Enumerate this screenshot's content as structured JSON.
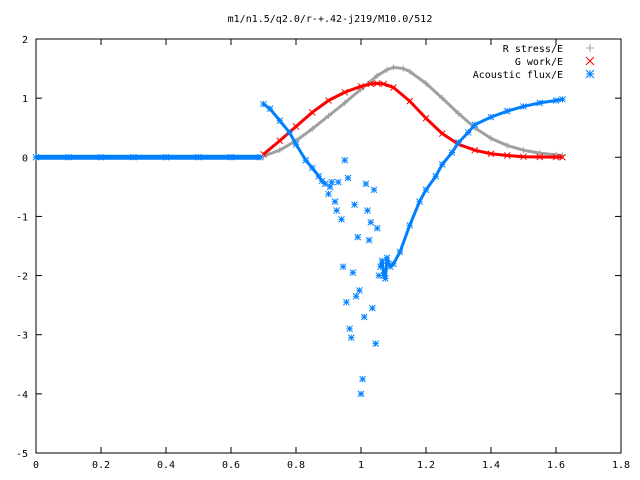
{
  "chart_data": {
    "type": "scatter",
    "title": "m1/n1.5/q2.0/r-+.42-j219/M10.0/512",
    "xlabel": "",
    "ylabel": "",
    "xlim": [
      0,
      1.8
    ],
    "ylim": [
      -5,
      2
    ],
    "x_ticks": [
      "0",
      "0.2",
      "0.4",
      "0.6",
      "0.8",
      "1",
      "1.2",
      "1.4",
      "1.6",
      "1.8"
    ],
    "y_ticks": [
      "2",
      "1",
      "0",
      "-1",
      "-2",
      "-3",
      "-4",
      "-5"
    ],
    "grid": false,
    "legend_position": "top-right",
    "series": [
      {
        "name": "R stress/E",
        "marker": "+",
        "color": "#a0a0a0",
        "x": [
          0.7,
          0.75,
          0.8,
          0.85,
          0.9,
          0.95,
          1.0,
          1.05,
          1.08,
          1.1,
          1.13,
          1.15,
          1.2,
          1.25,
          1.3,
          1.35,
          1.4,
          1.45,
          1.5,
          1.55,
          1.6,
          1.62
        ],
        "y": [
          0.02,
          0.12,
          0.28,
          0.48,
          0.7,
          0.92,
          1.15,
          1.38,
          1.48,
          1.52,
          1.5,
          1.45,
          1.25,
          1.0,
          0.74,
          0.5,
          0.32,
          0.2,
          0.12,
          0.07,
          0.04,
          0.03
        ]
      },
      {
        "name": "G work/E",
        "marker": "x",
        "color": "#ff0000",
        "x": [
          0.7,
          0.75,
          0.8,
          0.85,
          0.9,
          0.95,
          1.0,
          1.03,
          1.05,
          1.07,
          1.1,
          1.15,
          1.2,
          1.25,
          1.3,
          1.35,
          1.4,
          1.45,
          1.5,
          1.55,
          1.6,
          1.62
        ],
        "y": [
          0.05,
          0.28,
          0.52,
          0.76,
          0.96,
          1.1,
          1.2,
          1.24,
          1.25,
          1.24,
          1.18,
          0.95,
          0.66,
          0.4,
          0.22,
          0.12,
          0.06,
          0.03,
          0.01,
          0.005,
          0.002,
          0.0
        ]
      },
      {
        "name": "Acoustic flux/E",
        "marker": "*",
        "color": "#0080ff",
        "x": [
          0.0,
          0.1,
          0.2,
          0.3,
          0.4,
          0.5,
          0.6,
          0.69,
          0.7,
          0.72,
          0.75,
          0.78,
          0.8,
          0.83,
          0.85,
          0.87,
          0.88,
          0.89,
          0.9,
          0.905,
          0.91,
          0.92,
          0.925,
          0.93,
          0.94,
          0.945,
          0.95,
          0.955,
          0.96,
          0.965,
          0.97,
          0.975,
          0.98,
          0.985,
          0.99,
          0.995,
          1.0,
          1.005,
          1.01,
          1.015,
          1.02,
          1.025,
          1.03,
          1.035,
          1.04,
          1.045,
          1.05,
          1.055,
          1.06,
          1.065,
          1.07,
          1.075,
          1.08,
          1.09,
          1.1,
          1.12,
          1.15,
          1.18,
          1.2,
          1.23,
          1.25,
          1.28,
          1.3,
          1.33,
          1.35,
          1.4,
          1.45,
          1.5,
          1.55,
          1.6,
          1.62
        ],
        "y": [
          0,
          0,
          0,
          0,
          0,
          0,
          0,
          0,
          0.9,
          0.82,
          0.62,
          0.42,
          0.22,
          -0.05,
          -0.18,
          -0.32,
          -0.4,
          -0.45,
          -0.62,
          -0.5,
          -0.42,
          -0.75,
          -0.9,
          -0.42,
          -1.05,
          -1.85,
          -0.05,
          -2.45,
          -0.35,
          -2.9,
          -3.05,
          -1.95,
          -0.8,
          -2.35,
          -1.35,
          -2.25,
          -4.0,
          -3.75,
          -2.7,
          -0.45,
          -0.9,
          -1.4,
          -1.1,
          -2.55,
          -0.55,
          -3.15,
          -1.2,
          -2.0,
          -1.85,
          -1.75,
          -2.0,
          -2.05,
          -1.7,
          -1.85,
          -1.8,
          -1.6,
          -1.15,
          -0.75,
          -0.55,
          -0.32,
          -0.12,
          0.08,
          0.25,
          0.42,
          0.55,
          0.68,
          0.78,
          0.86,
          0.92,
          0.96,
          0.98
        ]
      }
    ]
  }
}
